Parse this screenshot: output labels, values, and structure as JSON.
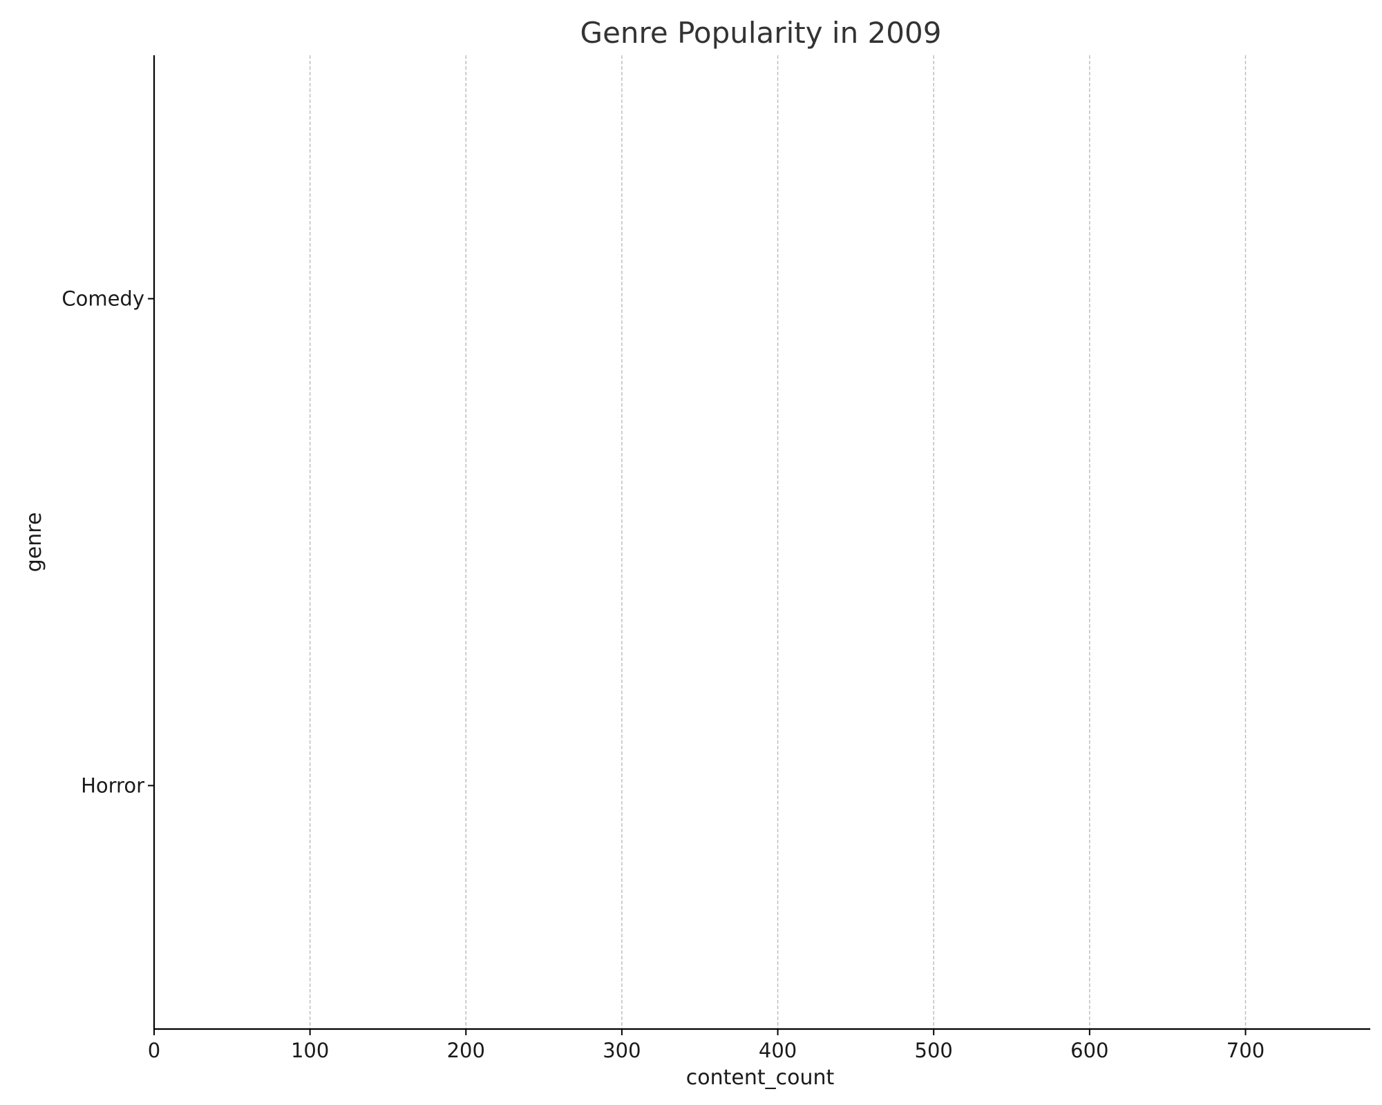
{
  "chart_data": {
    "type": "bar",
    "orientation": "horizontal",
    "title": "Genre Popularity in 2009",
    "xlabel": "content_count",
    "ylabel": "genre",
    "categories": [
      "Comedy",
      "Horror"
    ],
    "values": [
      0,
      0
    ],
    "xlim": [
      0,
      780
    ],
    "xticks": [
      0,
      100,
      200,
      300,
      400,
      500,
      600,
      700
    ],
    "grid": "x-dashed",
    "legend": "none",
    "colors": {
      "axis": "#000000",
      "grid": "#bbbbbb",
      "title": "#333333",
      "text": "#1a1a1a"
    }
  }
}
